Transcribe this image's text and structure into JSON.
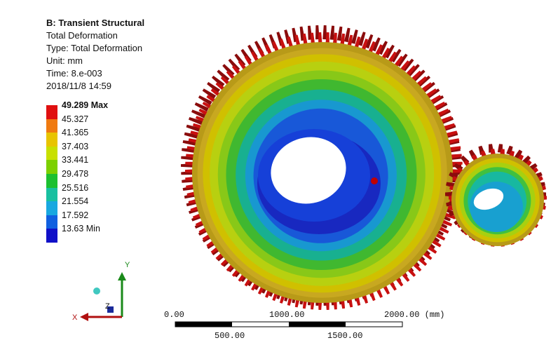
{
  "info": {
    "title": "B: Transient Structural",
    "result": "Total Deformation",
    "type": "Type: Total Deformation",
    "unit": "Unit: mm",
    "time": "Time: 8.e-003",
    "date": "2018/11/8 14:59"
  },
  "legend": {
    "labels": [
      "49.289 Max",
      "45.327",
      "41.365",
      "37.403",
      "33.441",
      "29.478",
      "25.516",
      "21.554",
      "17.592",
      "13.63 Min"
    ],
    "colors": [
      "#e01010",
      "#f07a10",
      "#e8c400",
      "#c8e000",
      "#7cd000",
      "#1cc030",
      "#18c0a0",
      "#18a8e0",
      "#1060e0",
      "#1010c8"
    ]
  },
  "triad": {
    "x": "X",
    "y": "Y",
    "z": "Z"
  },
  "scale": {
    "top_labels": [
      "0.00",
      "1000.00",
      "2000.00 (mm)"
    ],
    "bottom_labels": [
      "500.00",
      "1500.00"
    ]
  },
  "colors": {
    "tooth_red": "#c81010",
    "gear_rim": "#b8a020",
    "bore": "#1828c0",
    "probe": "#c00000"
  }
}
